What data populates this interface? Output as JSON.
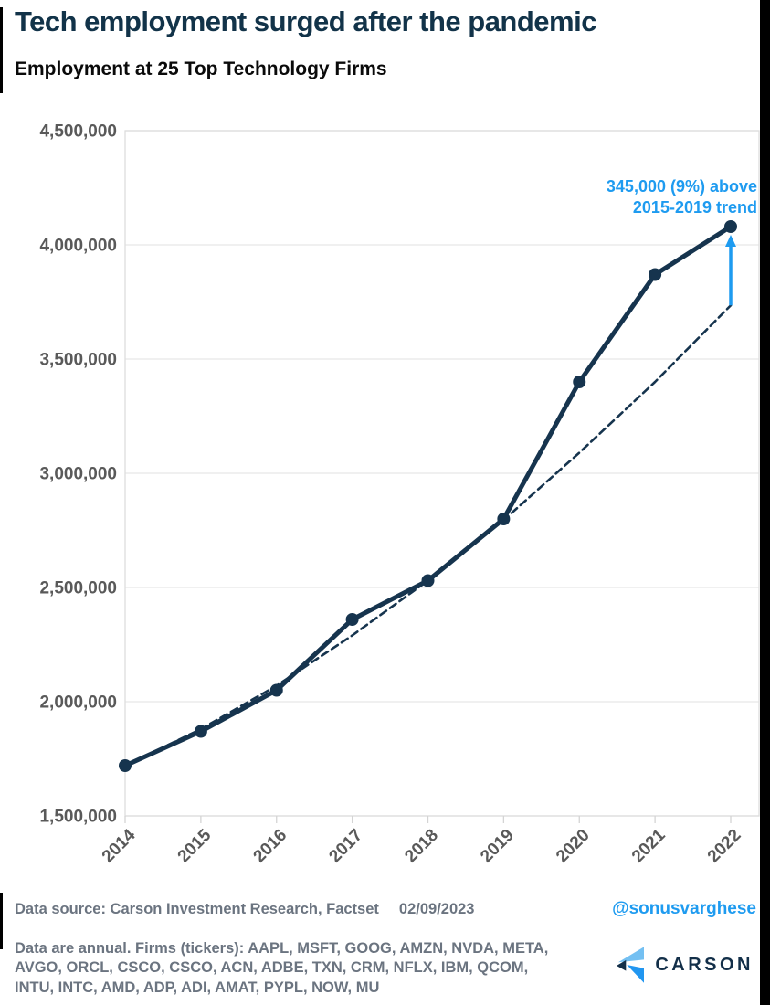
{
  "page": {
    "background": "#ffffff",
    "frame_color": "#000000"
  },
  "header": {
    "title": "Tech employment surged after the pandemic",
    "subtitle": "Employment at 25 Top Technology Firms"
  },
  "chart_data": {
    "type": "line",
    "title": "Employment at 25 Top Technology Firms",
    "categories": [
      "2014",
      "2015",
      "2016",
      "2017",
      "2018",
      "2019",
      "2020",
      "2021",
      "2022"
    ],
    "series": [
      {
        "name": "Employment at 25 top technology firms",
        "style": "solid",
        "color": "#16344E",
        "markers": true,
        "values": [
          1720000,
          1870000,
          2050000,
          2360000,
          2530000,
          2800000,
          3400000,
          3870000,
          4080000
        ]
      },
      {
        "name": "2015-2019 trend (extended)",
        "style": "dashed",
        "color": "#16344E",
        "markers": false,
        "values": [
          1720000,
          1880000,
          2070000,
          2290000,
          2530000,
          2795000,
          3090000,
          3400000,
          3735000
        ]
      }
    ],
    "ylim": [
      1500000,
      4500000
    ],
    "ytick_step": 500000,
    "grid": "horizontal",
    "grid_color": "#E7E7E7",
    "axis_label_color": "#595959",
    "annotation": {
      "lines": [
        "345,000 (9%) above",
        "2015-2019 trend"
      ],
      "color": "#1E9BF0",
      "arrow_year": "2022",
      "arrow_from_value": 3735000,
      "arrow_to_value": 4080000
    }
  },
  "footer": {
    "data_source": "Data source: Carson Investment Research, Factset",
    "date": "02/09/2023",
    "handle": "@sonusvarghese",
    "tickers": "Data are annual. Firms (tickers): AAPL, MSFT, GOOG, AMZN, NVDA, META, AVGO, ORCL, CSCO, CSCO, ACN, ADBE, TXN, CRM, NFLX, IBM, QCOM, INTU, INTC, AMD, ADP, ADI, AMAT, PYPL, NOW, MU",
    "logo_text": "CARSON",
    "logo_colors": {
      "light": "#74C0F2",
      "mid": "#2196F0",
      "navy": "#132F49"
    }
  }
}
